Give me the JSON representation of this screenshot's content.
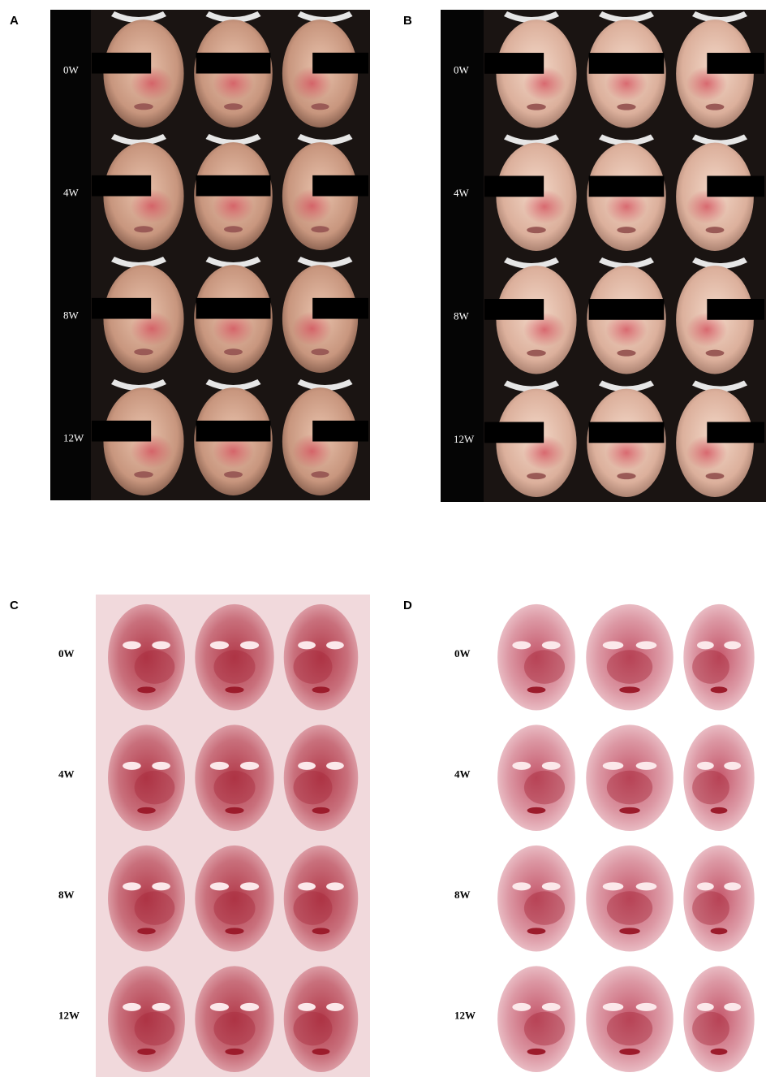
{
  "panels": [
    {
      "label": "A",
      "rows": [
        "0W",
        "4W",
        "8W",
        "12W"
      ]
    },
    {
      "label": "B",
      "rows": [
        "0W",
        "4W",
        "8W",
        "12W"
      ]
    },
    {
      "label": "C",
      "rows": [
        "0W",
        "4W",
        "8W",
        "12W"
      ]
    },
    {
      "label": "D",
      "rows": [
        "0W",
        "4W",
        "8W",
        "12W"
      ]
    }
  ]
}
